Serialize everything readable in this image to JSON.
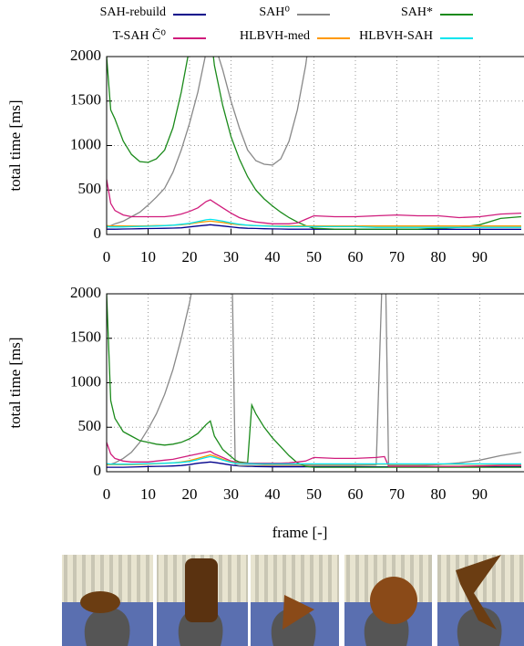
{
  "chart_data": [
    {
      "type": "line",
      "ylabel": "total time [ms]",
      "x": [
        0,
        1,
        2,
        4,
        6,
        8,
        10,
        12,
        14,
        16,
        18,
        20,
        22,
        24,
        25,
        26,
        28,
        30,
        32,
        34,
        36,
        38,
        40,
        42,
        44,
        46,
        48,
        50,
        55,
        60,
        65,
        70,
        75,
        80,
        85,
        90,
        95,
        100
      ],
      "xlim": [
        0,
        100
      ],
      "ylim": [
        0,
        2000
      ],
      "xticks": [
        0,
        10,
        20,
        30,
        40,
        50,
        60,
        70,
        80,
        90
      ],
      "yticks": [
        0,
        500,
        1000,
        1500,
        2000
      ],
      "grid": true,
      "series": [
        {
          "name": "SAH-rebuild",
          "color": "#00008b",
          "values": [
            60,
            60,
            60,
            62,
            63,
            65,
            67,
            68,
            70,
            72,
            75,
            85,
            95,
            105,
            110,
            105,
            95,
            85,
            75,
            70,
            68,
            65,
            63,
            62,
            60,
            60,
            60,
            60,
            58,
            58,
            58,
            58,
            58,
            58,
            58,
            58,
            58,
            58
          ]
        },
        {
          "name": "SAH⁰",
          "color": "#888888",
          "values": [
            80,
            100,
            120,
            150,
            200,
            250,
            330,
            420,
            520,
            700,
            950,
            1250,
            1600,
            2050,
            2200,
            2150,
            1850,
            1500,
            1200,
            950,
            830,
            790,
            780,
            850,
            1050,
            1400,
            1900,
            2600,
            null,
            null,
            null,
            null,
            null,
            null,
            null,
            null,
            null,
            null
          ]
        },
        {
          "name": "SAH*",
          "color": "#1a8a1a",
          "values": [
            2000,
            1400,
            1300,
            1050,
            900,
            820,
            810,
            850,
            950,
            1200,
            1600,
            2100,
            null,
            null,
            2300,
            1900,
            1450,
            1100,
            850,
            650,
            500,
            400,
            320,
            250,
            190,
            140,
            100,
            70,
            60,
            60,
            60,
            60,
            60,
            70,
            80,
            110,
            180,
            200
          ]
        },
        {
          "name": "T-SAH C̃⁰",
          "color": "#d01c7c",
          "values": [
            620,
            350,
            270,
            220,
            200,
            200,
            200,
            200,
            200,
            210,
            230,
            260,
            300,
            370,
            390,
            360,
            300,
            240,
            190,
            160,
            140,
            130,
            120,
            120,
            120,
            130,
            170,
            210,
            200,
            200,
            210,
            220,
            210,
            210,
            190,
            200,
            230,
            240
          ]
        },
        {
          "name": "HLBVH-med",
          "color": "#ff9900",
          "values": [
            100,
            95,
            95,
            95,
            95,
            95,
            97,
            100,
            102,
            105,
            110,
            120,
            135,
            145,
            150,
            145,
            135,
            120,
            110,
            105,
            100,
            98,
            95,
            95,
            95,
            95,
            95,
            95,
            95,
            95,
            95,
            95,
            95,
            95,
            95,
            95,
            95,
            95
          ]
        },
        {
          "name": "HLBVH-SAH",
          "color": "#00e5ee",
          "values": [
            90,
            85,
            85,
            85,
            88,
            90,
            92,
            95,
            100,
            105,
            115,
            125,
            145,
            165,
            170,
            165,
            150,
            130,
            115,
            105,
            100,
            95,
            92,
            90,
            88,
            88,
            88,
            88,
            88,
            88,
            80,
            80,
            80,
            80,
            80,
            80,
            80,
            80
          ]
        }
      ]
    },
    {
      "type": "line",
      "ylabel": "total time [ms]",
      "xlabel": "frame [-]",
      "x": [
        0,
        1,
        2,
        4,
        6,
        8,
        10,
        12,
        14,
        16,
        18,
        20,
        22,
        24,
        25,
        26,
        28,
        30,
        31,
        32,
        34,
        35,
        36,
        38,
        40,
        42,
        44,
        46,
        48,
        50,
        55,
        60,
        65,
        67,
        68,
        70,
        75,
        80,
        85,
        90,
        95,
        100
      ],
      "xlim": [
        0,
        100
      ],
      "ylim": [
        0,
        2000
      ],
      "xticks": [
        0,
        10,
        20,
        30,
        40,
        50,
        60,
        70,
        80,
        90
      ],
      "yticks": [
        0,
        500,
        1000,
        1500,
        2000
      ],
      "grid": true,
      "series": [
        {
          "color": "#00008b",
          "values": [
            50,
            50,
            50,
            50,
            52,
            55,
            58,
            60,
            62,
            65,
            70,
            80,
            95,
            105,
            110,
            105,
            90,
            75,
            70,
            65,
            60,
            60,
            58,
            56,
            55,
            55,
            55,
            55,
            55,
            55,
            55,
            55,
            55,
            55,
            55,
            55,
            55,
            55,
            55,
            55,
            55,
            55
          ]
        },
        {
          "color": "#888888",
          "values": [
            80,
            85,
            100,
            150,
            220,
            330,
            480,
            650,
            870,
            1150,
            1500,
            1900,
            2400,
            null,
            null,
            null,
            null,
            3000,
            80,
            70,
            70,
            70,
            70,
            70,
            70,
            70,
            70,
            70,
            70,
            70,
            70,
            70,
            75,
            3000,
            70,
            70,
            70,
            80,
            100,
            130,
            180,
            220
          ]
        },
        {
          "color": "#1a8a1a",
          "values": [
            2000,
            800,
            600,
            450,
            400,
            350,
            330,
            310,
            300,
            310,
            330,
            370,
            430,
            530,
            570,
            400,
            250,
            170,
            130,
            110,
            100,
            750,
            650,
            500,
            380,
            280,
            180,
            100,
            60,
            50,
            50,
            50,
            50,
            50,
            50,
            50,
            50,
            50,
            50,
            50,
            50,
            50
          ]
        },
        {
          "color": "#d01c7c",
          "values": [
            330,
            200,
            150,
            120,
            110,
            110,
            110,
            120,
            130,
            140,
            160,
            180,
            200,
            220,
            230,
            200,
            160,
            120,
            110,
            100,
            95,
            95,
            95,
            95,
            95,
            95,
            100,
            110,
            120,
            160,
            150,
            150,
            160,
            170,
            60,
            60,
            60,
            60,
            60,
            65,
            70,
            70
          ]
        },
        {
          "color": "#ff9900",
          "values": [
            80,
            80,
            80,
            80,
            80,
            82,
            85,
            90,
            95,
            100,
            110,
            125,
            150,
            175,
            190,
            175,
            140,
            110,
            100,
            95,
            90,
            90,
            88,
            85,
            85,
            85,
            85,
            85,
            85,
            85,
            85,
            85,
            85,
            85,
            85,
            85,
            85,
            85,
            85,
            85,
            85,
            85
          ]
        },
        {
          "color": "#00e5ee",
          "values": [
            90,
            85,
            85,
            85,
            85,
            88,
            90,
            92,
            95,
            100,
            105,
            115,
            135,
            160,
            170,
            160,
            130,
            105,
            95,
            92,
            90,
            90,
            88,
            88,
            88,
            88,
            88,
            88,
            88,
            88,
            88,
            88,
            88,
            88,
            88,
            88,
            88,
            88,
            88,
            88,
            88,
            88
          ]
        }
      ]
    }
  ]
}
